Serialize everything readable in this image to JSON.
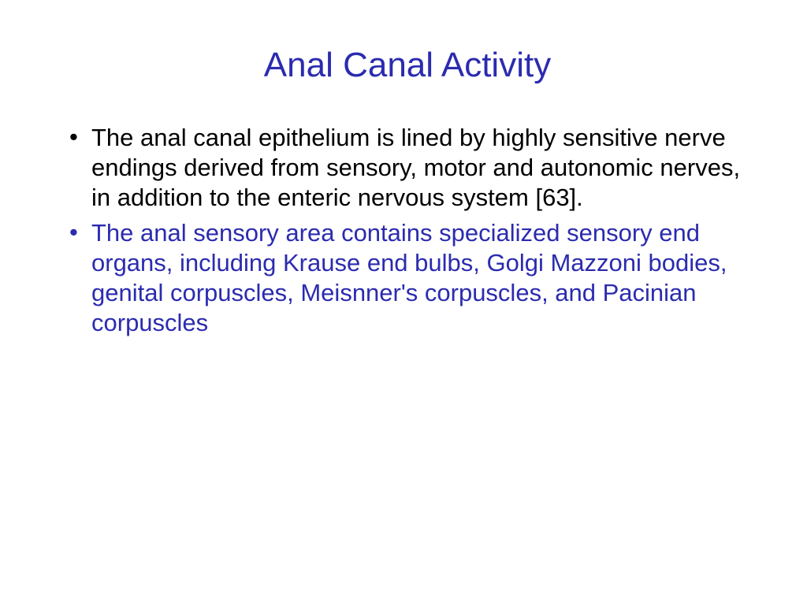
{
  "slide": {
    "title": "Anal Canal Activity",
    "title_color": "#2b2bb0",
    "title_fontsize": 44,
    "background_color": "#ffffff",
    "bullets": [
      {
        "text": "The anal canal epithelium is lined by highly sensitive nerve endings derived from sensory, motor and autonomic nerves, in addition to the enteric nervous system [63].",
        "text_color": "#000000",
        "bullet_marker_color": "#000000",
        "fontsize": 31,
        "line_height": 1.22
      },
      {
        "text": "The anal sensory area contains specialized sensory end organs, including Krause end bulbs, Golgi Mazzoni bodies, genital corpuscles, Meisnner's corpuscles, and Pacinian corpuscles",
        "text_color": "#2b2bb0",
        "bullet_marker_color": "#2b2bb0",
        "fontsize": 31,
        "line_height": 1.22
      }
    ]
  }
}
